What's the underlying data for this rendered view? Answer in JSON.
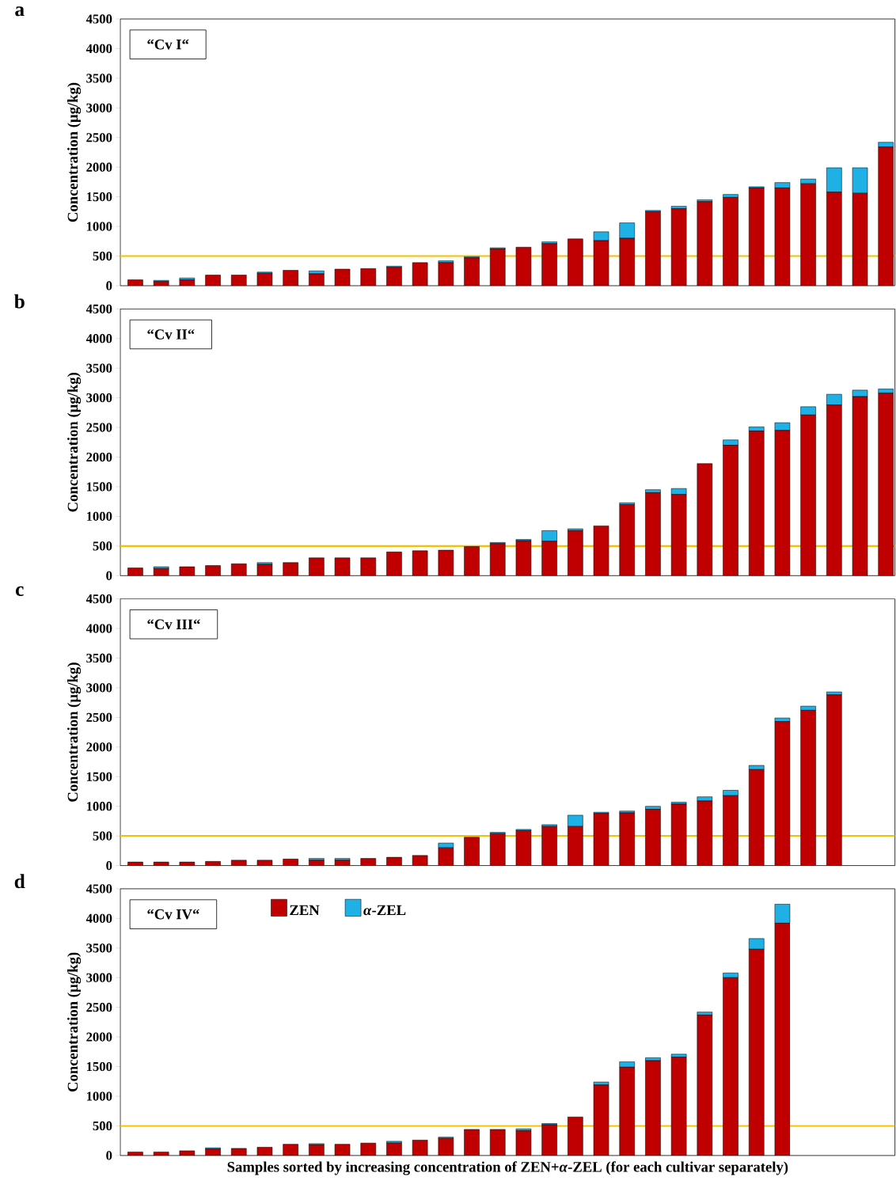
{
  "chart_data": [
    {
      "type": "bar",
      "stacked": true,
      "title": "a",
      "ylabel": "Concentration (µg/kg)",
      "annotations": [
        "“Cv I“"
      ],
      "categories": [
        null,
        null,
        null,
        null,
        null,
        null,
        null,
        null,
        null,
        null,
        null,
        null,
        null,
        null,
        null,
        null,
        null,
        null,
        null,
        null,
        null,
        null,
        null,
        null,
        null,
        null,
        null,
        null,
        null,
        null
      ],
      "series": [
        {
          "color": "#c00000",
          "values": [
            100,
            70,
            100,
            180,
            180,
            210,
            260,
            200,
            280,
            290,
            310,
            390,
            390,
            470,
            620,
            650,
            710,
            790,
            760,
            800,
            1250,
            1300,
            1420,
            1490,
            1650,
            1650,
            1720,
            1580,
            1560,
            2340
          ]
        },
        {
          "color": "#1fb1e6",
          "values": [
            0,
            20,
            30,
            0,
            0,
            20,
            0,
            50,
            0,
            0,
            20,
            0,
            30,
            20,
            20,
            0,
            30,
            0,
            150,
            260,
            20,
            40,
            30,
            50,
            20,
            90,
            80,
            410,
            430,
            80
          ]
        }
      ],
      "ylim": [
        0,
        4500
      ],
      "yticks": [
        0,
        500,
        1000,
        1500,
        2000,
        2500,
        3000,
        3500,
        4000,
        4500
      ],
      "ref_lines": [
        {
          "axis": "y",
          "value": 500,
          "color": "#f5c000"
        }
      ]
    },
    {
      "type": "bar",
      "stacked": true,
      "title": "b",
      "ylabel": "Concentration (µg/kg)",
      "annotations": [
        "“Cv II“"
      ],
      "categories": [
        null,
        null,
        null,
        null,
        null,
        null,
        null,
        null,
        null,
        null,
        null,
        null,
        null,
        null,
        null,
        null,
        null,
        null,
        null,
        null,
        null,
        null,
        null,
        null,
        null,
        null,
        null,
        null,
        null,
        null
      ],
      "series": [
        {
          "color": "#c00000",
          "values": [
            130,
            120,
            150,
            170,
            200,
            190,
            220,
            300,
            300,
            300,
            400,
            420,
            430,
            490,
            540,
            590,
            580,
            760,
            840,
            1200,
            1400,
            1370,
            1890,
            2200,
            2440,
            2450,
            2710,
            2880,
            3020,
            3080
          ]
        },
        {
          "color": "#1fb1e6",
          "values": [
            0,
            30,
            0,
            0,
            0,
            30,
            0,
            0,
            0,
            0,
            0,
            0,
            0,
            0,
            20,
            20,
            180,
            30,
            0,
            30,
            50,
            100,
            0,
            90,
            70,
            130,
            140,
            180,
            110,
            70
          ]
        }
      ],
      "ylim": [
        0,
        4500
      ],
      "yticks": [
        0,
        500,
        1000,
        1500,
        2000,
        2500,
        3000,
        3500,
        4000,
        4500
      ],
      "ref_lines": [
        {
          "axis": "y",
          "value": 500,
          "color": "#f5c000"
        }
      ]
    },
    {
      "type": "bar",
      "stacked": true,
      "title": "c",
      "ylabel": "Concentration (µg/kg)",
      "annotations": [
        "“Cv III“"
      ],
      "categories": [
        null,
        null,
        null,
        null,
        null,
        null,
        null,
        null,
        null,
        null,
        null,
        null,
        null,
        null,
        null,
        null,
        null,
        null,
        null,
        null,
        null,
        null,
        null,
        null,
        null,
        null,
        null,
        null,
        null,
        null
      ],
      "series": [
        {
          "color": "#c00000",
          "values": [
            60,
            60,
            60,
            70,
            90,
            90,
            110,
            90,
            90,
            120,
            140,
            170,
            300,
            480,
            540,
            590,
            660,
            660,
            880,
            890,
            950,
            1040,
            1090,
            1180,
            1620,
            2430,
            2620,
            2880,
            null,
            null
          ]
        },
        {
          "color": "#1fb1e6",
          "values": [
            0,
            0,
            0,
            0,
            0,
            0,
            0,
            30,
            30,
            0,
            0,
            0,
            80,
            0,
            20,
            20,
            30,
            190,
            20,
            30,
            50,
            30,
            70,
            90,
            70,
            60,
            70,
            50,
            null,
            null
          ]
        }
      ],
      "ylim": [
        0,
        4500
      ],
      "yticks": [
        0,
        500,
        1000,
        1500,
        2000,
        2500,
        3000,
        3500,
        4000,
        4500
      ],
      "ref_lines": [
        {
          "axis": "y",
          "value": 500,
          "color": "#f5c000"
        }
      ]
    },
    {
      "type": "bar",
      "stacked": true,
      "title": "d",
      "ylabel": "Concentration (µg/kg)",
      "xlabel": "Samples sorted by increasing concentration of ZEN+*α*-ZEL (for each cultivar separately)",
      "annotations": [
        "“Cv IV“"
      ],
      "legend": "top left",
      "categories": [
        null,
        null,
        null,
        null,
        null,
        null,
        null,
        null,
        null,
        null,
        null,
        null,
        null,
        null,
        null,
        null,
        null,
        null,
        null,
        null,
        null,
        null,
        null,
        null,
        null,
        null,
        null,
        null,
        null,
        null
      ],
      "series": [
        {
          "name": "ZEN",
          "color": "#c00000",
          "values": [
            60,
            60,
            80,
            110,
            120,
            140,
            190,
            180,
            190,
            210,
            210,
            260,
            290,
            440,
            440,
            420,
            520,
            650,
            1190,
            1490,
            1600,
            1660,
            2370,
            3000,
            3480,
            3920,
            null,
            null,
            null,
            null
          ]
        },
        {
          "name": "*α*-ZEL",
          "color": "#1fb1e6",
          "values": [
            0,
            0,
            0,
            20,
            0,
            0,
            0,
            20,
            0,
            0,
            30,
            0,
            20,
            0,
            0,
            30,
            20,
            0,
            50,
            90,
            50,
            50,
            50,
            80,
            180,
            320,
            null,
            null,
            null,
            null
          ]
        }
      ],
      "ylim": [
        0,
        4500
      ],
      "yticks": [
        0,
        500,
        1000,
        1500,
        2000,
        2500,
        3000,
        3500,
        4000,
        4500
      ],
      "ref_lines": [
        {
          "axis": "y",
          "value": 500,
          "color": "#f5c000"
        }
      ]
    }
  ]
}
